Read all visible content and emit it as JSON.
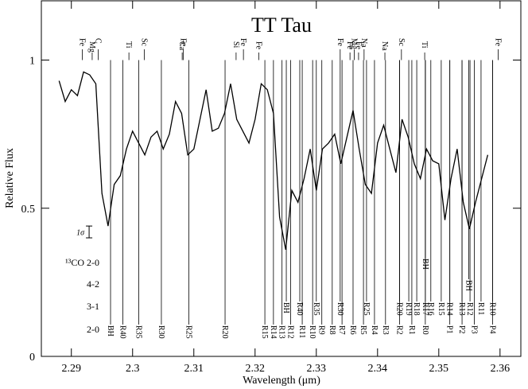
{
  "chart_data": {
    "type": "line",
    "title": "TT Tau",
    "xlabel": "Wavelength (μm)",
    "ylabel": "Relative Flux",
    "xlim": [
      2.2851,
      2.3634
    ],
    "ylim": [
      0,
      1.2
    ],
    "xticks": [
      2.29,
      2.3,
      2.31,
      2.32,
      2.33,
      2.34,
      2.35,
      2.36
    ],
    "yticks": [
      0,
      0.5,
      1
    ],
    "color": "#000000",
    "x": [
      2.288,
      2.289,
      2.29,
      2.291,
      2.292,
      2.293,
      2.294,
      2.295,
      2.296,
      2.297,
      2.298,
      2.299,
      2.3,
      2.301,
      2.302,
      2.303,
      2.304,
      2.305,
      2.306,
      2.307,
      2.308,
      2.309,
      2.31,
      2.311,
      2.312,
      2.313,
      2.314,
      2.315,
      2.316,
      2.317,
      2.318,
      2.319,
      2.32,
      2.321,
      2.322,
      2.323,
      2.324,
      2.325,
      2.326,
      2.327,
      2.328,
      2.329,
      2.33,
      2.331,
      2.332,
      2.333,
      2.334,
      2.335,
      2.336,
      2.337,
      2.338,
      2.339,
      2.34,
      2.341,
      2.342,
      2.343,
      2.344,
      2.345,
      2.346,
      2.347,
      2.348,
      2.349,
      2.35,
      2.351,
      2.352,
      2.353,
      2.354,
      2.355,
      2.356,
      2.357,
      2.358
    ],
    "values": [
      0.93,
      0.86,
      0.9,
      0.88,
      0.96,
      0.95,
      0.92,
      0.55,
      0.44,
      0.58,
      0.61,
      0.7,
      0.76,
      0.72,
      0.68,
      0.74,
      0.76,
      0.7,
      0.75,
      0.86,
      0.82,
      0.68,
      0.7,
      0.8,
      0.9,
      0.76,
      0.77,
      0.82,
      0.92,
      0.8,
      0.76,
      0.72,
      0.8,
      0.92,
      0.9,
      0.82,
      0.47,
      0.36,
      0.56,
      0.52,
      0.6,
      0.7,
      0.56,
      0.7,
      0.72,
      0.75,
      0.65,
      0.74,
      0.83,
      0.7,
      0.58,
      0.55,
      0.72,
      0.78,
      0.7,
      0.62,
      0.8,
      0.74,
      0.65,
      0.6,
      0.7,
      0.66,
      0.65,
      0.46,
      0.6,
      0.7,
      0.52,
      0.43,
      0.52,
      0.6,
      0.68
    ],
    "atomic_lines": [
      {
        "label": "Fe",
        "x": 2.2918
      },
      {
        "label": "Mg",
        "x": 2.2934
      },
      {
        "label": "C",
        "x": 2.2944
      },
      {
        "label": "Ti",
        "x": 2.2994
      },
      {
        "label": "Sc",
        "x": 2.3019
      },
      {
        "label": "Ca",
        "x": 2.3081
      },
      {
        "label": "Fe",
        "x": 2.3083
      },
      {
        "label": "Si",
        "x": 2.3169
      },
      {
        "label": "Fe",
        "x": 2.3181
      },
      {
        "label": "Fe",
        "x": 2.3206
      },
      {
        "label": "Fe",
        "x": 2.3339
      },
      {
        "label": "Fe",
        "x": 2.3355
      },
      {
        "label": "Mg",
        "x": 2.3362
      },
      {
        "label": "Fe",
        "x": 2.3369
      },
      {
        "label": "Na",
        "x": 2.3378
      },
      {
        "label": "Na",
        "x": 2.3412
      },
      {
        "label": "Sc",
        "x": 2.3439
      },
      {
        "label": "Ti",
        "x": 2.3477
      },
      {
        "label": "Fe",
        "x": 2.3597
      }
    ],
    "co_bands": [
      {
        "label": "¹³CO 2-0",
        "lines": [
          {
            "label": "BH",
            "x": 2.3478
          }
        ]
      },
      {
        "label": "4-2",
        "lines": [
          {
            "label": "BH",
            "x": 2.3549
          }
        ]
      },
      {
        "label": "3-1",
        "lines": [
          {
            "label": "BH",
            "x": 2.3251
          },
          {
            "label": "R40",
            "x": 2.3273
          },
          {
            "label": "R35",
            "x": 2.33
          },
          {
            "label": "R30",
            "x": 2.3339
          },
          {
            "label": "R25",
            "x": 2.3382
          },
          {
            "label": "R20",
            "x": 2.3436
          },
          {
            "label": "R19",
            "x": 2.3451
          },
          {
            "label": "R18",
            "x": 2.3464
          },
          {
            "label": "R17",
            "x": 2.3478
          },
          {
            "label": "R16",
            "x": 2.3487
          },
          {
            "label": "R15",
            "x": 2.3504
          },
          {
            "label": "R14",
            "x": 2.3518
          },
          {
            "label": "R13",
            "x": 2.3538
          },
          {
            "label": "R12",
            "x": 2.3551
          },
          {
            "label": "R11",
            "x": 2.3569
          },
          {
            "label": "R10",
            "x": 2.3588
          }
        ]
      },
      {
        "label": "2-0",
        "lines": [
          {
            "label": "BH",
            "x": 2.2964
          },
          {
            "label": "R40",
            "x": 2.2984
          },
          {
            "label": "R35",
            "x": 2.301
          },
          {
            "label": "R30",
            "x": 2.3047
          },
          {
            "label": "R25",
            "x": 2.3092
          },
          {
            "label": "R20",
            "x": 2.3151
          },
          {
            "label": "R15",
            "x": 2.3216
          },
          {
            "label": "R14",
            "x": 2.323
          },
          {
            "label": "R13",
            "x": 2.3244
          },
          {
            "label": "R12",
            "x": 2.3258
          },
          {
            "label": "R11",
            "x": 2.3277
          },
          {
            "label": "R10",
            "x": 2.3294
          },
          {
            "label": "R9",
            "x": 2.3309
          },
          {
            "label": "R8",
            "x": 2.3326
          },
          {
            "label": "R7",
            "x": 2.3342
          },
          {
            "label": "R6",
            "x": 2.336
          },
          {
            "label": "R5",
            "x": 2.3377
          },
          {
            "label": "R4",
            "x": 2.3395
          },
          {
            "label": "R3",
            "x": 2.3413
          },
          {
            "label": "R2",
            "x": 2.3436
          },
          {
            "label": "R1",
            "x": 2.3456
          },
          {
            "label": "R0",
            "x": 2.3478
          },
          {
            "label": "P1",
            "x": 2.3518
          },
          {
            "label": "P2",
            "x": 2.3538
          },
          {
            "label": "P3",
            "x": 2.3558
          },
          {
            "label": "P4",
            "x": 2.3588
          }
        ]
      }
    ],
    "error_bar": {
      "label": "1σ",
      "x": 2.2929,
      "value": 0.42,
      "error": 0.02
    }
  }
}
